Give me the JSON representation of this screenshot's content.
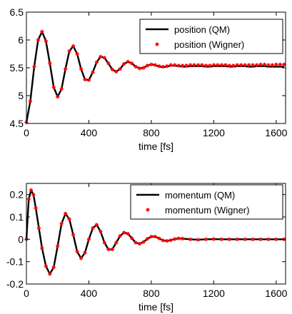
{
  "chart_data": [
    {
      "type": "line",
      "title": "",
      "xlabel": "time [fs]",
      "ylabel": "",
      "xlim": [
        0,
        1660
      ],
      "ylim": [
        4.5,
        6.5
      ],
      "x_ticks": [
        0,
        400,
        800,
        1200,
        1600
      ],
      "x_tick_labels": [
        "0",
        "400",
        "800",
        "1200",
        "1600"
      ],
      "y_ticks": [
        4.5,
        5,
        5.5,
        6,
        6.5
      ],
      "y_tick_labels": [
        "4.5",
        "5",
        "5.5",
        "6",
        "6.5"
      ],
      "grid": false,
      "legend": "top-right",
      "series": [
        {
          "name": "position (QM)",
          "style": "line",
          "color": "#000000",
          "x": [
            0,
            25,
            50,
            75,
            100,
            125,
            150,
            175,
            200,
            225,
            250,
            275,
            300,
            325,
            350,
            375,
            400,
            425,
            450,
            475,
            500,
            525,
            550,
            575,
            600,
            625,
            650,
            675,
            700,
            725,
            750,
            775,
            800,
            825,
            850,
            875,
            900,
            925,
            950,
            975,
            1000,
            1025,
            1050,
            1075,
            1100,
            1125,
            1150,
            1175,
            1200,
            1225,
            1250,
            1275,
            1300,
            1325,
            1350,
            1375,
            1400,
            1425,
            1450,
            1475,
            1500,
            1525,
            1550,
            1575,
            1600,
            1625,
            1650
          ],
          "y": [
            4.52,
            4.9,
            5.52,
            6.0,
            6.15,
            5.98,
            5.58,
            5.15,
            4.98,
            5.12,
            5.48,
            5.8,
            5.89,
            5.75,
            5.48,
            5.29,
            5.28,
            5.42,
            5.6,
            5.7,
            5.68,
            5.58,
            5.47,
            5.43,
            5.48,
            5.57,
            5.61,
            5.58,
            5.52,
            5.49,
            5.5,
            5.54,
            5.56,
            5.55,
            5.52,
            5.51,
            5.52,
            5.54,
            5.54,
            5.53,
            5.52,
            5.52,
            5.53,
            5.53,
            5.53,
            5.53,
            5.52,
            5.52,
            5.53,
            5.53,
            5.53,
            5.53,
            5.52,
            5.52,
            5.53,
            5.53,
            5.53,
            5.52,
            5.52,
            5.53,
            5.53,
            5.53,
            5.52,
            5.52,
            5.52,
            5.52,
            5.52
          ]
        },
        {
          "name": "position (Wigner)",
          "style": "marker",
          "color": "#ff0000",
          "x": [
            0,
            25,
            50,
            75,
            100,
            125,
            150,
            175,
            200,
            225,
            250,
            275,
            300,
            325,
            350,
            375,
            400,
            425,
            450,
            475,
            500,
            525,
            550,
            575,
            600,
            625,
            650,
            675,
            700,
            725,
            750,
            775,
            800,
            825,
            850,
            875,
            900,
            925,
            950,
            975,
            1000,
            1025,
            1050,
            1075,
            1100,
            1125,
            1150,
            1175,
            1200,
            1225,
            1250,
            1275,
            1300,
            1325,
            1350,
            1375,
            1400,
            1425,
            1450,
            1475,
            1500,
            1525,
            1550,
            1575,
            1600,
            1625,
            1650
          ],
          "y": [
            4.52,
            4.9,
            5.52,
            6.0,
            6.15,
            5.98,
            5.58,
            5.15,
            4.98,
            5.12,
            5.48,
            5.8,
            5.89,
            5.75,
            5.48,
            5.29,
            5.28,
            5.42,
            5.6,
            5.7,
            5.68,
            5.58,
            5.47,
            5.43,
            5.48,
            5.57,
            5.61,
            5.58,
            5.52,
            5.49,
            5.5,
            5.54,
            5.56,
            5.55,
            5.53,
            5.52,
            5.53,
            5.55,
            5.55,
            5.54,
            5.54,
            5.54,
            5.55,
            5.55,
            5.55,
            5.55,
            5.54,
            5.54,
            5.55,
            5.55,
            5.55,
            5.55,
            5.54,
            5.54,
            5.55,
            5.55,
            5.55,
            5.55,
            5.55,
            5.55,
            5.56,
            5.56,
            5.55,
            5.55,
            5.56,
            5.56,
            5.56
          ]
        }
      ]
    },
    {
      "type": "line",
      "title": "",
      "xlabel": "time [fs]",
      "ylabel": "",
      "xlim": [
        0,
        1660
      ],
      "ylim": [
        -0.2,
        0.25
      ],
      "x_ticks": [
        0,
        400,
        800,
        1200,
        1600
      ],
      "x_tick_labels": [
        "0",
        "400",
        "800",
        "1200",
        "1600"
      ],
      "y_ticks": [
        -0.2,
        -0.1,
        0,
        0.1,
        0.2
      ],
      "y_tick_labels": [
        "-0.2",
        "-0.1",
        "0",
        "0.1",
        "0.2"
      ],
      "grid": false,
      "legend": "top-right",
      "series": [
        {
          "name": "momentum (QM)",
          "style": "line",
          "color": "#000000",
          "x": [
            0,
            15,
            30,
            45,
            60,
            80,
            100,
            125,
            150,
            175,
            200,
            225,
            250,
            275,
            300,
            325,
            350,
            375,
            400,
            425,
            450,
            475,
            500,
            525,
            550,
            575,
            600,
            625,
            650,
            675,
            700,
            725,
            750,
            775,
            800,
            825,
            850,
            875,
            900,
            925,
            950,
            975,
            1000,
            1050,
            1100,
            1150,
            1200,
            1250,
            1300,
            1350,
            1400,
            1450,
            1500,
            1550,
            1600,
            1650
          ],
          "y": [
            0.0,
            0.18,
            0.22,
            0.2,
            0.14,
            0.05,
            -0.04,
            -0.12,
            -0.155,
            -0.125,
            -0.03,
            0.07,
            0.115,
            0.09,
            0.02,
            -0.055,
            -0.085,
            -0.06,
            0.0,
            0.05,
            0.065,
            0.035,
            -0.015,
            -0.045,
            -0.045,
            -0.015,
            0.015,
            0.03,
            0.025,
            0.005,
            -0.015,
            -0.02,
            -0.012,
            0.002,
            0.012,
            0.012,
            0.004,
            -0.005,
            -0.007,
            -0.004,
            0.001,
            0.004,
            0.003,
            0.0,
            -0.002,
            0.0,
            0.001,
            0.0,
            0.0,
            0.0,
            0.0,
            0.0,
            0.0,
            0.0,
            0.0,
            0.0
          ]
        },
        {
          "name": "momentum (Wigner)",
          "style": "marker",
          "color": "#ff0000",
          "x": [
            0,
            15,
            30,
            45,
            60,
            80,
            100,
            125,
            150,
            175,
            200,
            225,
            250,
            275,
            300,
            325,
            350,
            375,
            400,
            425,
            450,
            475,
            500,
            525,
            550,
            575,
            600,
            625,
            650,
            675,
            700,
            725,
            750,
            775,
            800,
            825,
            850,
            875,
            900,
            925,
            950,
            975,
            1000,
            1050,
            1100,
            1150,
            1200,
            1250,
            1300,
            1350,
            1400,
            1450,
            1500,
            1550,
            1600,
            1650
          ],
          "y": [
            0.0,
            0.18,
            0.22,
            0.2,
            0.14,
            0.05,
            -0.04,
            -0.12,
            -0.155,
            -0.125,
            -0.03,
            0.07,
            0.115,
            0.09,
            0.02,
            -0.055,
            -0.085,
            -0.06,
            0.0,
            0.05,
            0.065,
            0.035,
            -0.015,
            -0.045,
            -0.045,
            -0.015,
            0.015,
            0.03,
            0.025,
            0.005,
            -0.015,
            -0.02,
            -0.012,
            0.002,
            0.012,
            0.012,
            0.004,
            -0.005,
            -0.007,
            -0.004,
            0.001,
            0.004,
            0.003,
            0.0,
            -0.002,
            0.0,
            0.001,
            0.0,
            0.0,
            0.0,
            0.0,
            0.0,
            0.0,
            0.0,
            0.0,
            0.0
          ]
        }
      ]
    }
  ]
}
